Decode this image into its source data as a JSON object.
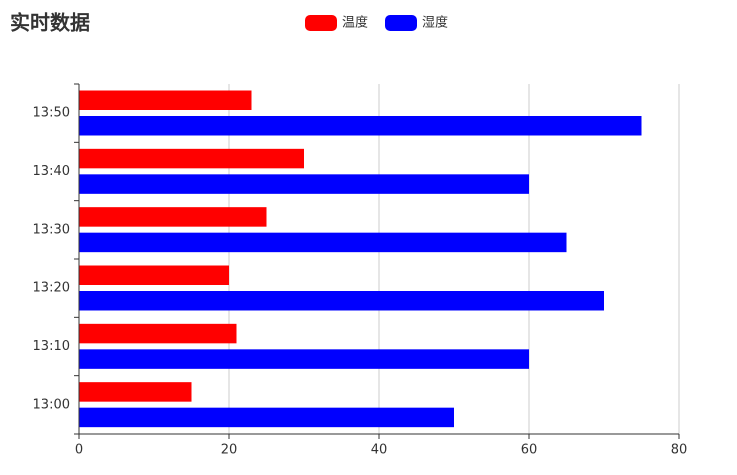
{
  "chart_data": {
    "type": "hbar",
    "title": "实时数据",
    "categories": [
      "13:00",
      "13:10",
      "13:20",
      "13:30",
      "13:40",
      "13:50"
    ],
    "series": [
      {
        "name": "温度",
        "color": "#ff0000",
        "values": [
          15,
          21,
          20,
          25,
          30,
          23
        ]
      },
      {
        "name": "湿度",
        "color": "#0000ff",
        "values": [
          50,
          60,
          70,
          65,
          60,
          75
        ]
      }
    ],
    "xlim": [
      0,
      80
    ],
    "xticks": [
      0,
      20,
      40,
      60,
      80
    ],
    "grid": true,
    "legend": "top"
  }
}
